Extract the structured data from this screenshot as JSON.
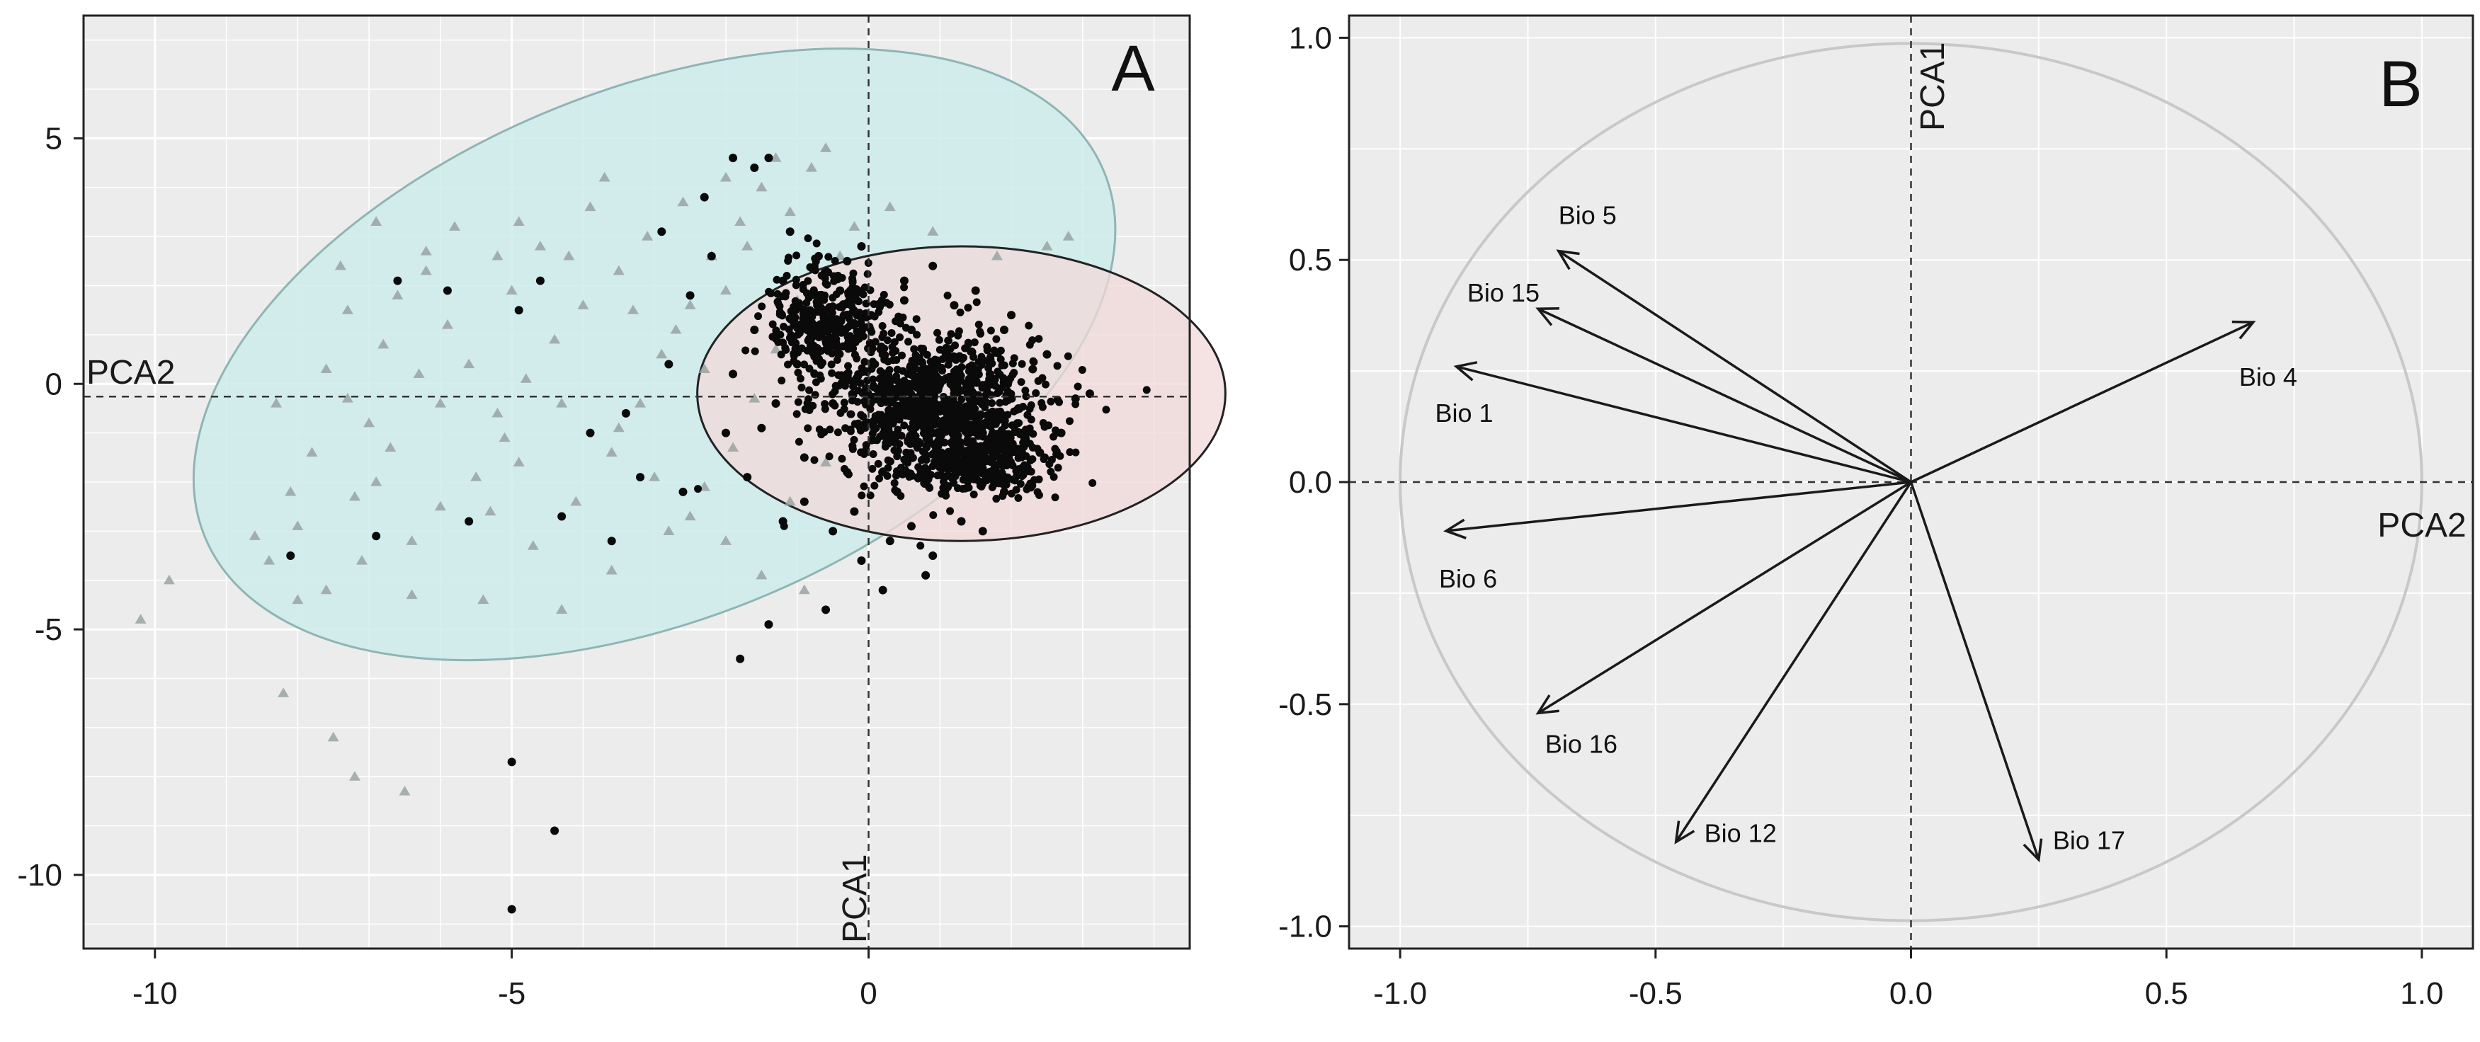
{
  "colors": {
    "panel_bg": "#ececec",
    "grid": "#ffffff",
    "group_triangles_fill": "#cdeceb",
    "group_dots_fill": "#f2dad9",
    "triangle_point": "#9aa3a3",
    "dot_point": "#0a0a0a",
    "arrow": "#1a1a1a",
    "unit_circle": "#c8c8c8"
  },
  "chart_data": [
    {
      "panel": "A",
      "type": "scatter",
      "title": "A",
      "xlabel": "PCA1",
      "ylabel": "PCA2",
      "xlim": [
        -11,
        4.5
      ],
      "ylim": [
        -11.5,
        7.5
      ],
      "xticks": [
        -10,
        -5,
        0
      ],
      "xtick_labels": [
        "-10",
        "-5",
        "0"
      ],
      "yticks": [
        5,
        0,
        -5,
        -10
      ],
      "ytick_labels": [
        "5",
        "0",
        "-5",
        "-10"
      ],
      "grid": true,
      "ellipses": [
        {
          "group": "triangles",
          "center": [
            -3.0,
            0.6
          ],
          "semi_axes": [
            6.8,
            5.4
          ],
          "rotation_deg": 22
        },
        {
          "group": "dots",
          "center": [
            1.3,
            -0.2
          ],
          "semi_axes": [
            3.7,
            3.0
          ],
          "rotation_deg": 0
        }
      ],
      "series": [
        {
          "name": "triangles",
          "marker": "triangle",
          "points": [
            [
              -10.2,
              -4.8
            ],
            [
              -9.8,
              -4.0
            ],
            [
              -8.2,
              -6.3
            ],
            [
              -7.5,
              -7.2
            ],
            [
              -7.2,
              -8.0
            ],
            [
              -6.5,
              -8.3
            ],
            [
              -8.6,
              -3.1
            ],
            [
              -8.1,
              -2.2
            ],
            [
              -7.8,
              -1.4
            ],
            [
              -8.3,
              -0.4
            ],
            [
              -7.6,
              0.3
            ],
            [
              -7.0,
              -0.8
            ],
            [
              -6.8,
              0.8
            ],
            [
              -7.3,
              1.5
            ],
            [
              -6.6,
              1.8
            ],
            [
              -6.2,
              2.3
            ],
            [
              -5.9,
              1.2
            ],
            [
              -5.6,
              0.4
            ],
            [
              -5.2,
              -0.6
            ],
            [
              -4.9,
              -1.6
            ],
            [
              -5.3,
              -2.6
            ],
            [
              -4.7,
              -3.3
            ],
            [
              -4.1,
              -2.4
            ],
            [
              -3.6,
              -1.4
            ],
            [
              -3.2,
              -0.4
            ],
            [
              -2.9,
              0.6
            ],
            [
              -2.5,
              1.6
            ],
            [
              -2.2,
              2.6
            ],
            [
              -1.8,
              3.3
            ],
            [
              -1.5,
              4.0
            ],
            [
              -1.1,
              3.5
            ],
            [
              -0.8,
              4.4
            ],
            [
              -0.6,
              4.8
            ],
            [
              -1.3,
              4.6
            ],
            [
              -2.0,
              4.2
            ],
            [
              -2.6,
              3.7
            ],
            [
              -3.1,
              3.0
            ],
            [
              -3.5,
              2.3
            ],
            [
              -4.0,
              1.6
            ],
            [
              -4.4,
              0.9
            ],
            [
              -4.8,
              0.1
            ],
            [
              -5.1,
              -1.1
            ],
            [
              -5.5,
              -1.9
            ],
            [
              -6.0,
              -2.5
            ],
            [
              -6.4,
              -3.2
            ],
            [
              -6.9,
              -2.0
            ],
            [
              -7.1,
              -3.6
            ],
            [
              -7.6,
              -4.2
            ],
            [
              -6.4,
              -4.3
            ],
            [
              -5.4,
              -4.4
            ],
            [
              -4.3,
              -4.6
            ],
            [
              -3.6,
              -3.8
            ],
            [
              -2.8,
              -3.0
            ],
            [
              -2.3,
              -2.1
            ],
            [
              -1.9,
              -1.3
            ],
            [
              -1.6,
              -0.3
            ],
            [
              -1.3,
              0.7
            ],
            [
              -1.0,
              1.7
            ],
            [
              -0.4,
              2.6
            ],
            [
              0.3,
              3.6
            ],
            [
              0.9,
              3.1
            ],
            [
              1.8,
              2.6
            ],
            [
              2.5,
              2.8
            ],
            [
              2.8,
              3.0
            ],
            [
              -2.0,
              -3.2
            ],
            [
              -1.5,
              -3.9
            ],
            [
              -0.9,
              -4.2
            ],
            [
              -1.1,
              -2.4
            ],
            [
              -0.6,
              -1.6
            ],
            [
              -3.9,
              3.6
            ],
            [
              -4.6,
              2.8
            ],
            [
              -5.2,
              2.6
            ],
            [
              -5.8,
              3.2
            ],
            [
              -6.2,
              2.7
            ],
            [
              -6.9,
              3.3
            ],
            [
              -7.4,
              2.4
            ],
            [
              -4.3,
              -0.4
            ],
            [
              -3.5,
              -0.9
            ],
            [
              -2.7,
              1.1
            ],
            [
              -2.0,
              1.9
            ],
            [
              -6.0,
              -0.4
            ],
            [
              -6.7,
              -1.3
            ],
            [
              -7.2,
              -2.3
            ],
            [
              -8.0,
              -2.9
            ],
            [
              -5.0,
              1.9
            ],
            [
              -4.2,
              2.6
            ],
            [
              -3.3,
              1.5
            ],
            [
              -2.3,
              0.3
            ],
            [
              -1.7,
              2.8
            ],
            [
              -0.2,
              3.2
            ],
            [
              -8.4,
              -3.6
            ],
            [
              -8.0,
              -4.4
            ],
            [
              -7.3,
              -0.3
            ],
            [
              -6.3,
              0.2
            ],
            [
              -3.0,
              -1.9
            ],
            [
              -2.5,
              -2.7
            ],
            [
              -4.9,
              3.3
            ],
            [
              -3.7,
              4.2
            ]
          ]
        },
        {
          "name": "dots",
          "marker": "circle",
          "points": [
            [
              -5.0,
              -10.7
            ],
            [
              -5.0,
              -7.7
            ],
            [
              -4.4,
              -9.1
            ],
            [
              -1.8,
              -5.6
            ],
            [
              -8.1,
              -3.5
            ],
            [
              -6.9,
              -3.1
            ],
            [
              -5.6,
              -2.8
            ],
            [
              -4.3,
              -2.7
            ],
            [
              -3.6,
              -3.2
            ],
            [
              -3.2,
              -1.9
            ],
            [
              -3.9,
              -1.0
            ],
            [
              -4.6,
              2.1
            ],
            [
              -5.9,
              1.9
            ],
            [
              -6.6,
              2.1
            ],
            [
              -4.9,
              1.5
            ],
            [
              -2.9,
              3.1
            ],
            [
              -2.5,
              1.8
            ],
            [
              -1.9,
              4.6
            ],
            [
              -1.6,
              4.4
            ],
            [
              -1.4,
              4.6
            ],
            [
              -2.3,
              3.8
            ],
            [
              -0.9,
              -2.4
            ],
            [
              -0.5,
              -3.0
            ],
            [
              -0.1,
              -3.6
            ],
            [
              0.3,
              -3.2
            ],
            [
              0.8,
              -3.9
            ],
            [
              1.3,
              -2.8
            ],
            [
              1.9,
              -2.2
            ],
            [
              2.4,
              -1.4
            ],
            [
              2.9,
              -0.3
            ],
            [
              2.5,
              0.6
            ],
            [
              1.9,
              1.1
            ],
            [
              1.2,
              1.6
            ],
            [
              0.5,
              2.1
            ],
            [
              -0.3,
              2.5
            ],
            [
              -0.7,
              2.6
            ],
            [
              -1.2,
              2.1
            ],
            [
              -1.6,
              1.1
            ],
            [
              -1.9,
              0.2
            ],
            [
              -1.5,
              -0.9
            ],
            [
              -0.9,
              -1.5
            ],
            [
              -0.3,
              -1.8
            ],
            [
              0.4,
              -2.2
            ],
            [
              1.0,
              -1.7
            ],
            [
              1.6,
              -1.0
            ],
            [
              2.1,
              -0.5
            ],
            [
              1.7,
              0.2
            ],
            [
              1.1,
              0.6
            ],
            [
              0.6,
              1.1
            ],
            [
              0.0,
              1.4
            ],
            [
              -0.6,
              1.1
            ],
            [
              -1.0,
              0.4
            ],
            [
              -0.5,
              -0.4
            ],
            [
              0.1,
              -0.9
            ],
            [
              0.7,
              -0.6
            ],
            [
              1.2,
              -0.2
            ],
            [
              0.8,
              0.3
            ],
            [
              0.2,
              0.6
            ],
            [
              -0.3,
              0.2
            ],
            [
              0.4,
              -0.1
            ],
            [
              1.4,
              -1.4
            ],
            [
              2.2,
              -1.7
            ],
            [
              -0.2,
              -2.6
            ],
            [
              0.6,
              -2.9
            ],
            [
              -1.2,
              -2.8
            ],
            [
              -2.6,
              -2.2
            ],
            [
              -2.0,
              -1.0
            ],
            [
              -2.8,
              0.4
            ],
            [
              -3.4,
              -0.6
            ],
            [
              -2.2,
              2.6
            ],
            [
              -1.1,
              3.1
            ],
            [
              -0.4,
              1.9
            ],
            [
              0.9,
              2.4
            ],
            [
              1.5,
              1.9
            ],
            [
              2.7,
              -1.0
            ],
            [
              3.1,
              -0.2
            ],
            [
              2.3,
              0.3
            ],
            [
              1.8,
              -0.7
            ],
            [
              0.2,
              -4.2
            ],
            [
              -0.6,
              -4.6
            ],
            [
              -1.4,
              -4.9
            ],
            [
              0.9,
              -3.5
            ],
            [
              1.6,
              -3.0
            ],
            [
              -0.8,
              0.8
            ],
            [
              -1.3,
              -0.4
            ],
            [
              0.5,
              1.7
            ],
            [
              -0.1,
              2.8
            ],
            [
              1.0,
              -1.1
            ],
            [
              2.0,
              1.4
            ],
            [
              -1.7,
              -1.9
            ]
          ]
        }
      ],
      "dense_clusters": [
        {
          "group": "dots",
          "center": [
            0.9,
            -0.4
          ],
          "spread": [
            1.4,
            1.3
          ],
          "count": 950
        },
        {
          "group": "dots",
          "center": [
            -0.6,
            1.3
          ],
          "spread": [
            0.7,
            1.0
          ],
          "count": 350
        },
        {
          "group": "dots",
          "center": [
            1.6,
            -1.6
          ],
          "spread": [
            1.0,
            0.6
          ],
          "count": 300
        }
      ]
    },
    {
      "panel": "B",
      "type": "line",
      "title": "B",
      "xlabel": "PCA2",
      "ylabel": "PCA1",
      "xlim": [
        -1.1,
        1.1
      ],
      "ylim": [
        -1.05,
        1.05
      ],
      "xticks": [
        -1.0,
        -0.5,
        0.0,
        0.5,
        1.0
      ],
      "xtick_labels": [
        "-1.0",
        "-0.5",
        "0.0",
        "0.5",
        "1.0"
      ],
      "yticks": [
        1.0,
        0.5,
        0.0,
        -0.5,
        -1.0
      ],
      "ytick_labels": [
        "1.0",
        "0.5",
        "0.0",
        "-0.5",
        "-1.0"
      ],
      "grid": true,
      "unit_circle": true,
      "loadings": [
        {
          "name": "Bio 5",
          "x": -0.69,
          "y": 0.52
        },
        {
          "name": "Bio 15",
          "x": -0.73,
          "y": 0.39
        },
        {
          "name": "Bio 1",
          "x": -0.89,
          "y": 0.26
        },
        {
          "name": "Bio 4",
          "x": 0.67,
          "y": 0.36
        },
        {
          "name": "Bio 6",
          "x": -0.91,
          "y": -0.11
        },
        {
          "name": "Bio 16",
          "x": -0.73,
          "y": -0.52
        },
        {
          "name": "Bio 12",
          "x": -0.46,
          "y": -0.81
        },
        {
          "name": "Bio 17",
          "x": 0.25,
          "y": -0.85
        }
      ]
    }
  ]
}
